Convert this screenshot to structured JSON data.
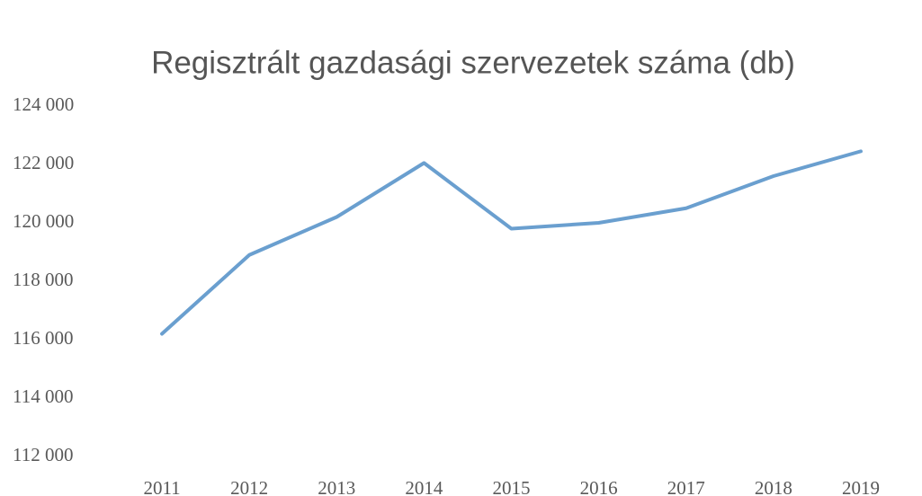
{
  "chart_data": {
    "type": "line",
    "title": "Regisztrált gazdasági szervezetek száma (db)",
    "categories": [
      "2011",
      "2012",
      "2013",
      "2014",
      "2015",
      "2016",
      "2017",
      "2018",
      "2019"
    ],
    "series": [
      {
        "color": "#6a9fcf",
        "values": [
          116200,
          118900,
          120200,
          122050,
          119800,
          120000,
          120500,
          121600,
          122450
        ]
      }
    ],
    "ylim": [
      112000,
      124000
    ],
    "yticks": [
      {
        "value": 112000,
        "label": "112 000"
      },
      {
        "value": 114000,
        "label": "114 000"
      },
      {
        "value": 116000,
        "label": "116 000"
      },
      {
        "value": 118000,
        "label": "118 000"
      },
      {
        "value": 120000,
        "label": "120 000"
      },
      {
        "value": 122000,
        "label": "122 000"
      },
      {
        "value": 124000,
        "label": "124 000"
      }
    ],
    "grid": false
  }
}
